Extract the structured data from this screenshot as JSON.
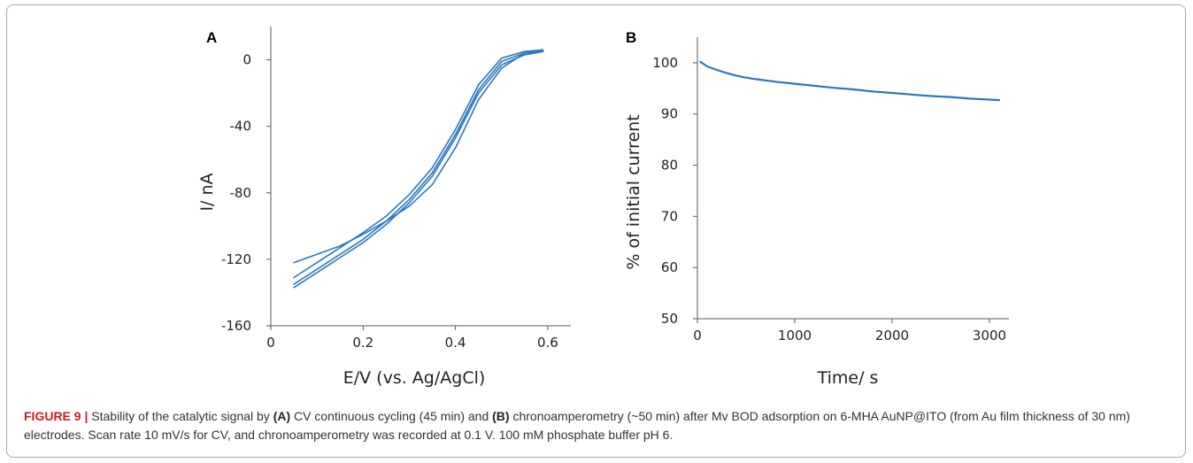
{
  "figure": {
    "caption_label": "FIGURE 9 |",
    "caption_parts": [
      "Stability of the catalytic signal by ",
      "(A)",
      " CV continuous cycling (45 min) and ",
      "(B)",
      " chronoamperometry (~50 min) after Mv BOD adsorption on 6-MHA AuNP@ITO (from Au film thickness of 30 nm) electrodes. Scan rate 10 mV/s for CV, and chronoamperometry was recorded at 0.1 V. 100 mM phosphate buffer pH 6."
    ]
  },
  "colors": {
    "series": "#2a78c0",
    "caption_label": "#c31f24",
    "axis": "#595959"
  },
  "chart_data": [
    {
      "panel": "A",
      "type": "line",
      "xlabel": "E/V (vs. Ag/AgCl)",
      "ylabel": "I/ nA",
      "xlim": [
        0,
        0.65
      ],
      "ylim": [
        -160,
        20
      ],
      "xticks": [
        0,
        0.2,
        0.4,
        0.6
      ],
      "xtick_labels": [
        "0",
        "0.2",
        "0.4",
        "0.6"
      ],
      "yticks": [
        -160,
        -120,
        -80,
        -40,
        0
      ],
      "ytick_labels": [
        "-160",
        "-120",
        "-80",
        "-40",
        "0"
      ],
      "grid": false,
      "series": [
        {
          "name": "",
          "x": [
            0.05,
            0.1,
            0.15,
            0.2,
            0.25,
            0.3,
            0.35,
            0.4,
            0.45,
            0.5,
            0.55,
            0.59
          ],
          "y": [
            -137,
            -128,
            -119,
            -110,
            -99,
            -86,
            -70,
            -47,
            -20,
            -3,
            3,
            5
          ]
        },
        {
          "name": "",
          "x": [
            0.05,
            0.1,
            0.15,
            0.2,
            0.25,
            0.3,
            0.35,
            0.4,
            0.45,
            0.5,
            0.55,
            0.59
          ],
          "y": [
            -135,
            -126,
            -117,
            -108,
            -97,
            -84,
            -68,
            -45,
            -18,
            -1,
            4,
            5
          ]
        },
        {
          "name": "",
          "x": [
            0.05,
            0.1,
            0.15,
            0.2,
            0.25,
            0.3,
            0.35,
            0.4,
            0.45,
            0.5,
            0.55,
            0.59
          ],
          "y": [
            -131,
            -122,
            -113,
            -104,
            -94,
            -81,
            -65,
            -42,
            -15,
            1,
            5,
            6
          ]
        },
        {
          "name": "",
          "x": [
            0.59,
            0.55,
            0.5,
            0.45,
            0.4,
            0.35,
            0.3,
            0.25,
            0.2,
            0.15,
            0.1,
            0.05
          ],
          "y": [
            6,
            4,
            -5,
            -24,
            -53,
            -75,
            -88,
            -97,
            -105,
            -112,
            -117,
            -122
          ]
        }
      ]
    },
    {
      "panel": "B",
      "type": "line",
      "xlabel": "Time/ s",
      "ylabel": "% of initial current",
      "xlim": [
        0,
        3200
      ],
      "ylim": [
        50,
        105
      ],
      "xticks": [
        0,
        1000,
        2000,
        3000
      ],
      "xtick_labels": [
        "0",
        "1000",
        "2000",
        "3000"
      ],
      "yticks": [
        50,
        60,
        70,
        80,
        90,
        100
      ],
      "ytick_labels": [
        "50",
        "60",
        "70",
        "80",
        "90",
        "100"
      ],
      "grid": false,
      "series": [
        {
          "name": "",
          "x": [
            30,
            100,
            200,
            300,
            400,
            500,
            600,
            800,
            1000,
            1200,
            1400,
            1600,
            1800,
            2000,
            2200,
            2400,
            2600,
            2800,
            3000,
            3100
          ],
          "y": [
            100.2,
            99.3,
            98.6,
            98.0,
            97.5,
            97.1,
            96.8,
            96.3,
            95.9,
            95.5,
            95.1,
            94.8,
            94.4,
            94.1,
            93.8,
            93.5,
            93.3,
            93.0,
            92.8,
            92.7
          ]
        }
      ]
    }
  ]
}
